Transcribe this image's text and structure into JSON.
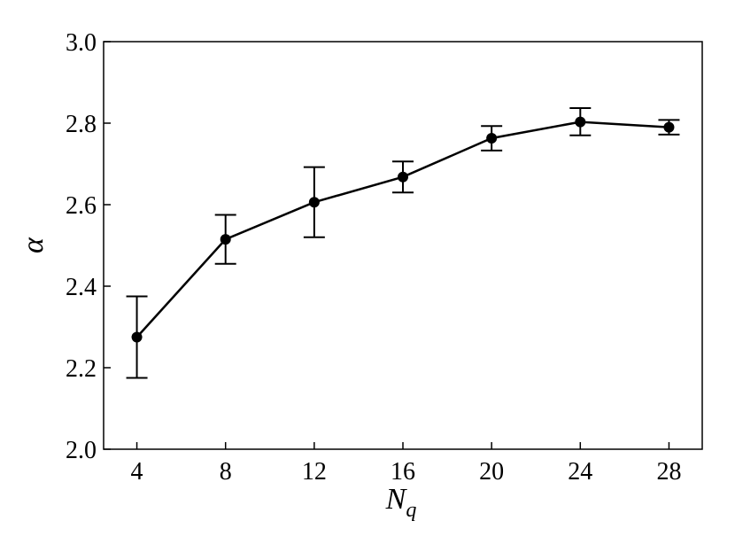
{
  "chart_data": {
    "type": "line",
    "title": "",
    "xlabel": "N",
    "xlabel_subscript": "q",
    "ylabel": "α",
    "x": [
      4,
      8,
      12,
      16,
      20,
      24,
      28
    ],
    "series": [
      {
        "values": [
          2.275,
          2.515,
          2.606,
          2.668,
          2.763,
          2.803,
          2.79
        ],
        "error_low": [
          2.175,
          2.455,
          2.52,
          2.63,
          2.733,
          2.77,
          2.772
        ],
        "error_high": [
          2.375,
          2.575,
          2.692,
          2.706,
          2.793,
          2.837,
          2.808
        ],
        "color": "#000000"
      }
    ],
    "xlim": [
      2.5,
      29.5
    ],
    "ylim": [
      2.0,
      3.0
    ],
    "xticks": [
      4,
      8,
      12,
      16,
      20,
      24,
      28
    ],
    "xtick_labels": [
      "4",
      "8",
      "12",
      "16",
      "20",
      "24",
      "28"
    ],
    "yticks": [
      2.0,
      2.2,
      2.4,
      2.6,
      2.8,
      3.0
    ],
    "ytick_labels": [
      "2.0",
      "2.2",
      "2.4",
      "2.6",
      "2.8",
      "3.0"
    ],
    "grid": false,
    "legend": "none"
  }
}
